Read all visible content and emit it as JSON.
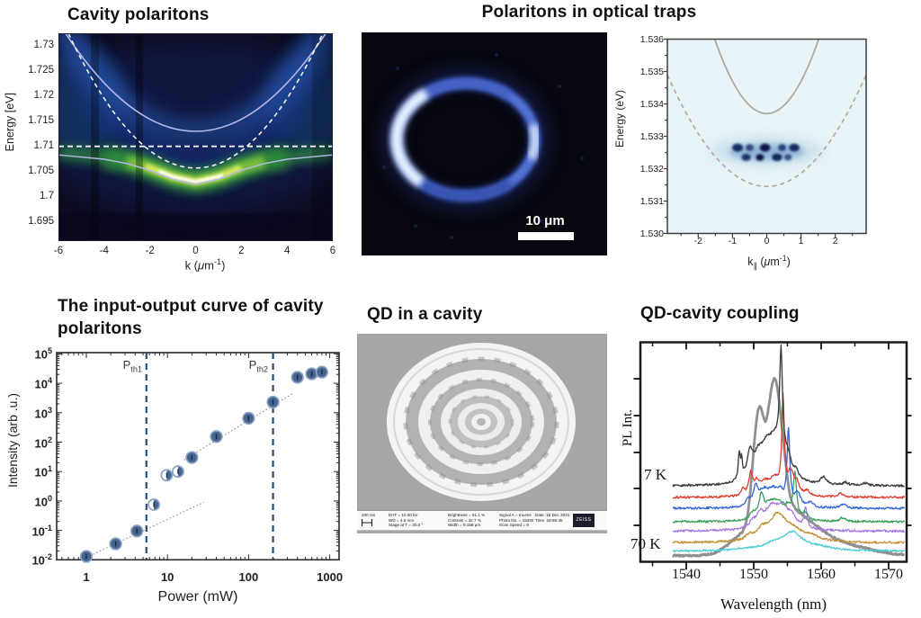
{
  "page": {
    "background": "#ffffff"
  },
  "panels": {
    "cavity": {
      "title": "Cavity polaritons",
      "ylabel": "Energy [eV]",
      "xlabel": {
        "pre": "k (",
        "mu": "μ",
        "mid": "m",
        "sup": "-1",
        "post": ")"
      },
      "yticks": [
        "1.73",
        "1.725",
        "1.72",
        "1.715",
        "1.71",
        "1.705",
        "1.7",
        "1.695"
      ],
      "xticks": [
        "-6",
        "-4",
        "-2",
        "0",
        "2",
        "4",
        "6"
      ]
    },
    "traps": {
      "title": "Polaritons in optical traps",
      "scalebar_label": "10 μm"
    },
    "trap_dispersion": {
      "ylabel": "Energy (eV)",
      "xlabel": {
        "base": "k",
        "sub": "∥",
        "pre": " (",
        "mu": "μ",
        "mid": "m",
        "sup": "-1",
        "post": ")"
      },
      "yticks": [
        "1.536",
        "1.535",
        "1.534",
        "1.533",
        "1.532",
        "1.531",
        "1.530"
      ],
      "xticks": [
        "-2",
        "-1",
        "0",
        "1",
        "2"
      ]
    },
    "input_output": {
      "title": "The input-output curve of cavity polaritons",
      "ylabel": "Intensity (arb .u.)",
      "xlabel": "Power (mW)",
      "yticks": [
        {
          "b": "10",
          "e": "5"
        },
        {
          "b": "10",
          "e": "4"
        },
        {
          "b": "10",
          "e": "3"
        },
        {
          "b": "10",
          "e": "2"
        },
        {
          "b": "10",
          "e": "1"
        },
        {
          "b": "10",
          "e": "0"
        },
        {
          "b": "10",
          "e": "-1"
        },
        {
          "b": "10",
          "e": "-2"
        }
      ],
      "xticks": [
        "1",
        "10",
        "100",
        "1000"
      ],
      "threshold_labels": [
        {
          "p": "P",
          "sub": "th1"
        },
        {
          "p": "P",
          "sub": "th2"
        }
      ]
    },
    "qd_cavity": {
      "title": "QD in a cavity",
      "scale_label": "200 nm",
      "col1": [
        "EHT = 10.00 kV",
        "WD = 4.6 mm",
        "Stage at T = 30.0 °"
      ],
      "col2": [
        "Brightness = 51.1 %",
        "Contrast = 32.7 %",
        "Width = 9.158 μm"
      ],
      "col3": [
        "Signal A = InLens",
        "Photo No. = 15250",
        "Scan Speed = 9"
      ],
      "col4": [
        "Date :15 Dec 2021",
        "Time :18:55:45"
      ],
      "logo": "ZEISS"
    },
    "qd_coupling": {
      "title": "QD-cavity coupling",
      "ylabel": "PL Int.",
      "xlabel": "Wavelength (nm)",
      "temp_top": "7 K",
      "temp_bottom": "70 K",
      "xticks": [
        "1540",
        "1550",
        "1560",
        "1570"
      ]
    }
  },
  "chart_data": [
    {
      "type": "heatmap",
      "title": "Cavity polaritons",
      "xlabel": "k (μm⁻¹)",
      "ylabel": "Energy [eV]",
      "xlim": [
        -6,
        6
      ],
      "ylim": [
        1.691,
        1.7324
      ],
      "colormap": "dark navy → blue → green → yellow → white",
      "emission_max": {
        "k": 0,
        "E": 1.703
      },
      "overlays": [
        {
          "name": "upper polariton",
          "style": "solid",
          "E0": 1.713,
          "curvature": 0.0006
        },
        {
          "name": "cavity mode",
          "style": "dashed",
          "E0": 1.7057,
          "curvature": 0.00086
        },
        {
          "name": "exciton line",
          "style": "dashed-horizontal",
          "E0": 1.71
        },
        {
          "name": "lower polariton",
          "style": "solid",
          "E0": 1.7025,
          "E_inf": 1.7092
        }
      ]
    },
    {
      "type": "heatmap",
      "title": "Polaritons in optical traps",
      "xlabel": "k∥ (μm⁻¹)",
      "ylabel": "Energy (eV)",
      "xlim": [
        -2.9,
        2.9
      ],
      "ylim": [
        1.53,
        1.536
      ],
      "overlays": [
        {
          "name": "upper branch",
          "style": "solid",
          "E0": 1.5337,
          "curvature": 0.001
        },
        {
          "name": "lower branch",
          "style": "dashed",
          "E0": 1.53145,
          "curvature": 0.00041
        }
      ],
      "condensate": {
        "E": 1.5325,
        "k_range": [
          -1.2,
          1.2
        ],
        "blobs_upper_k": [
          -0.85,
          -0.5,
          -0.05,
          0.45,
          0.8
        ],
        "blobs_lower_k": [
          -0.6,
          -0.2,
          0.3,
          0.62
        ]
      }
    },
    {
      "type": "scatter",
      "title": "The input-output curve of cavity polaritons",
      "xlabel": "Power (mW)",
      "ylabel": "Intensity (arb .u.)",
      "xscale": "log",
      "yscale": "log",
      "xlim": [
        0.45,
        1500
      ],
      "ylim": [
        0.01,
        100000
      ],
      "points": [
        {
          "p": 1,
          "i": 0.013
        },
        {
          "p": 2.3,
          "i": 0.035
        },
        {
          "p": 4.2,
          "i": 0.095
        },
        {
          "p": 6.8,
          "i": 0.75,
          "half": true
        },
        {
          "p": 9.8,
          "i": 7.5,
          "half": true
        },
        {
          "p": 13.5,
          "i": 10,
          "half": true
        },
        {
          "p": 20,
          "i": 30
        },
        {
          "p": 40,
          "i": 155
        },
        {
          "p": 100,
          "i": 650
        },
        {
          "p": 200,
          "i": 2300
        },
        {
          "p": 400,
          "i": 16000
        },
        {
          "p": 600,
          "i": 21000
        },
        {
          "p": 800,
          "i": 24000
        }
      ],
      "thresholds": [
        {
          "label": "Pth1",
          "p": 5.5
        },
        {
          "label": "Pth2",
          "p": 200
        }
      ],
      "guides": [
        {
          "from": [
            1,
            0.012
          ],
          "to": [
            28,
            0.9
          ]
        },
        {
          "from": [
            16,
            25
          ],
          "to": [
            350,
            4500
          ]
        }
      ],
      "marker_color": "#47648f",
      "threshold_color": "#27497e",
      "guide_color": "#8a8a8a"
    },
    {
      "type": "line",
      "title": "QD-cavity coupling",
      "xlabel": "Wavelength (nm)",
      "ylabel": "PL Int.",
      "xlim": [
        1533.2,
        1573.5
      ],
      "xticks": [
        1540,
        1550,
        1560,
        1570
      ],
      "temperature_range": [
        "7 K",
        "70 K"
      ],
      "series": [
        {
          "name": "cavity mode envelope",
          "color": "#8f8f8f",
          "width": 2.8,
          "baseline": 0.972,
          "noise": 0.004,
          "peaks": [
            {
              "t": "s",
              "c": 1552.2,
              "w": 2.6,
              "a": 0.44
            },
            {
              "t": "g",
              "c": 1550.6,
              "w": 0.9,
              "a": 0.12
            },
            {
              "t": "g",
              "c": 1553.1,
              "w": 0.8,
              "a": 0.14
            },
            {
              "t": "g",
              "c": 1551.7,
              "w": 0.5,
              "a": -0.05
            },
            {
              "t": "g",
              "c": 1553.5,
              "w": 3.0,
              "a": 0.16
            },
            {
              "t": "g",
              "c": 1557.0,
              "w": 4.0,
              "a": 0.12
            },
            {
              "t": "g",
              "c": 1562.0,
              "w": 6.5,
              "a": 0.055
            },
            {
              "t": "g",
              "c": 1549.0,
              "w": 3.4,
              "a": 0.1
            }
          ]
        },
        {
          "name": "70 K",
          "color": "#49ccd4",
          "width": 1.3,
          "baseline": 0.952,
          "noise": 0.004,
          "peaks": [
            {
              "c": 1555.8,
              "w": 1.7,
              "a": 0.078
            },
            {
              "c": 1553.0,
              "w": 1.6,
              "a": 0.028
            },
            {
              "c": 1559.5,
              "w": 2.5,
              "a": 0.015
            },
            {
              "c": 1549.0,
              "w": 2.0,
              "a": 0.008
            }
          ]
        },
        {
          "name": "intermediate-5",
          "color": "#c29136",
          "width": 1.3,
          "baseline": 0.914,
          "noise": 0.005,
          "peaks": [
            {
              "c": 1553.5,
              "w": 1.4,
              "a": 0.105
            },
            {
              "c": 1555.6,
              "w": 2.0,
              "a": 0.05
            },
            {
              "c": 1551.2,
              "w": 1.0,
              "a": 0.045
            },
            {
              "c": 1549.3,
              "w": 0.6,
              "a": 0.02
            },
            {
              "c": 1558.6,
              "w": 1.6,
              "a": 0.018
            }
          ]
        },
        {
          "name": "intermediate-4",
          "color": "#a678e2",
          "width": 1.3,
          "baseline": 0.861,
          "noise": 0.005,
          "peaks": [
            {
              "c": 1552.7,
              "w": 1.4,
              "a": 0.1
            },
            {
              "c": 1554.4,
              "w": 1.0,
              "a": 0.078
            },
            {
              "c": 1550.9,
              "w": 0.6,
              "a": 0.05
            },
            {
              "c": 1555.7,
              "w": 0.7,
              "a": 0.04
            },
            {
              "c": 1557.7,
              "w": 0.28,
              "a": 0.095
            },
            {
              "c": 1549.8,
              "w": 0.5,
              "a": 0.025
            }
          ]
        },
        {
          "name": "intermediate-3",
          "color": "#3da05c",
          "width": 1.3,
          "baseline": 0.818,
          "noise": 0.005,
          "peaks": [
            {
              "c": 1556.1,
              "w": 0.3,
              "a": 0.205
            },
            {
              "c": 1551.15,
              "w": 0.45,
              "a": 0.1
            },
            {
              "c": 1552.5,
              "w": 1.0,
              "a": 0.07
            },
            {
              "c": 1553.7,
              "w": 0.8,
              "a": 0.06
            },
            {
              "c": 1555.0,
              "w": 0.6,
              "a": 0.045
            },
            {
              "c": 1557.6,
              "w": 0.45,
              "a": 0.035
            },
            {
              "c": 1563.2,
              "w": 0.5,
              "a": 0.018
            },
            {
              "c": 1549.9,
              "w": 0.5,
              "a": 0.03
            }
          ]
        },
        {
          "name": "intermediate-2",
          "color": "#3263d8",
          "width": 1.3,
          "baseline": 0.757,
          "noise": 0.005,
          "peaks": [
            {
              "c": 1555.15,
              "w": 0.24,
              "a": 0.34
            },
            {
              "c": 1550.3,
              "w": 0.4,
              "a": 0.075
            },
            {
              "c": 1551.4,
              "w": 0.9,
              "a": 0.06
            },
            {
              "c": 1552.8,
              "w": 1.0,
              "a": 0.065
            },
            {
              "c": 1553.9,
              "w": 0.6,
              "a": 0.05
            },
            {
              "c": 1556.5,
              "w": 0.55,
              "a": 0.06
            },
            {
              "c": 1558.4,
              "w": 0.45,
              "a": 0.022
            },
            {
              "c": 1563.3,
              "w": 0.55,
              "a": 0.018
            },
            {
              "c": 1549.2,
              "w": 0.4,
              "a": 0.03
            }
          ]
        },
        {
          "name": "intermediate-1",
          "color": "#e23b30",
          "width": 1.3,
          "baseline": 0.707,
          "noise": 0.005,
          "peaks": [
            {
              "c": 1554.35,
              "w": 0.22,
              "a": 0.43
            },
            {
              "c": 1549.55,
              "w": 0.3,
              "a": 0.095
            },
            {
              "c": 1550.4,
              "w": 0.5,
              "a": 0.05
            },
            {
              "c": 1551.7,
              "w": 1.0,
              "a": 0.055
            },
            {
              "c": 1553.1,
              "w": 0.8,
              "a": 0.065
            },
            {
              "c": 1555.5,
              "w": 0.55,
              "a": 0.1
            },
            {
              "c": 1556.4,
              "w": 0.45,
              "a": 0.045
            },
            {
              "c": 1557.9,
              "w": 0.45,
              "a": 0.022
            },
            {
              "c": 1562.9,
              "w": 0.5,
              "a": 0.016
            },
            {
              "c": 1548.4,
              "w": 0.3,
              "a": 0.03
            }
          ]
        },
        {
          "name": "7 K",
          "color": "#3c3c3c",
          "width": 1.35,
          "baseline": 0.655,
          "noise": 0.005,
          "peaks": [
            {
              "c": 1554.05,
              "w": 0.24,
              "a": 0.45
            },
            {
              "c": 1553.9,
              "w": 1.2,
              "a": 0.13
            },
            {
              "c": 1547.85,
              "w": 0.16,
              "a": 0.12
            },
            {
              "c": 1548.2,
              "w": 0.14,
              "a": 0.09
            },
            {
              "c": 1549.45,
              "w": 0.5,
              "a": 0.115
            },
            {
              "c": 1550.7,
              "w": 0.9,
              "a": 0.1
            },
            {
              "c": 1551.9,
              "w": 0.9,
              "a": 0.105
            },
            {
              "c": 1552.9,
              "w": 0.9,
              "a": 0.09
            },
            {
              "c": 1555.1,
              "w": 0.5,
              "a": 0.06
            },
            {
              "c": 1556.3,
              "w": 0.45,
              "a": 0.03
            },
            {
              "c": 1560.35,
              "w": 0.5,
              "a": 0.035
            },
            {
              "c": 1563.6,
              "w": 0.45,
              "a": 0.012
            },
            {
              "c": 1566.5,
              "w": 0.6,
              "a": 0.01
            }
          ]
        }
      ]
    }
  ]
}
